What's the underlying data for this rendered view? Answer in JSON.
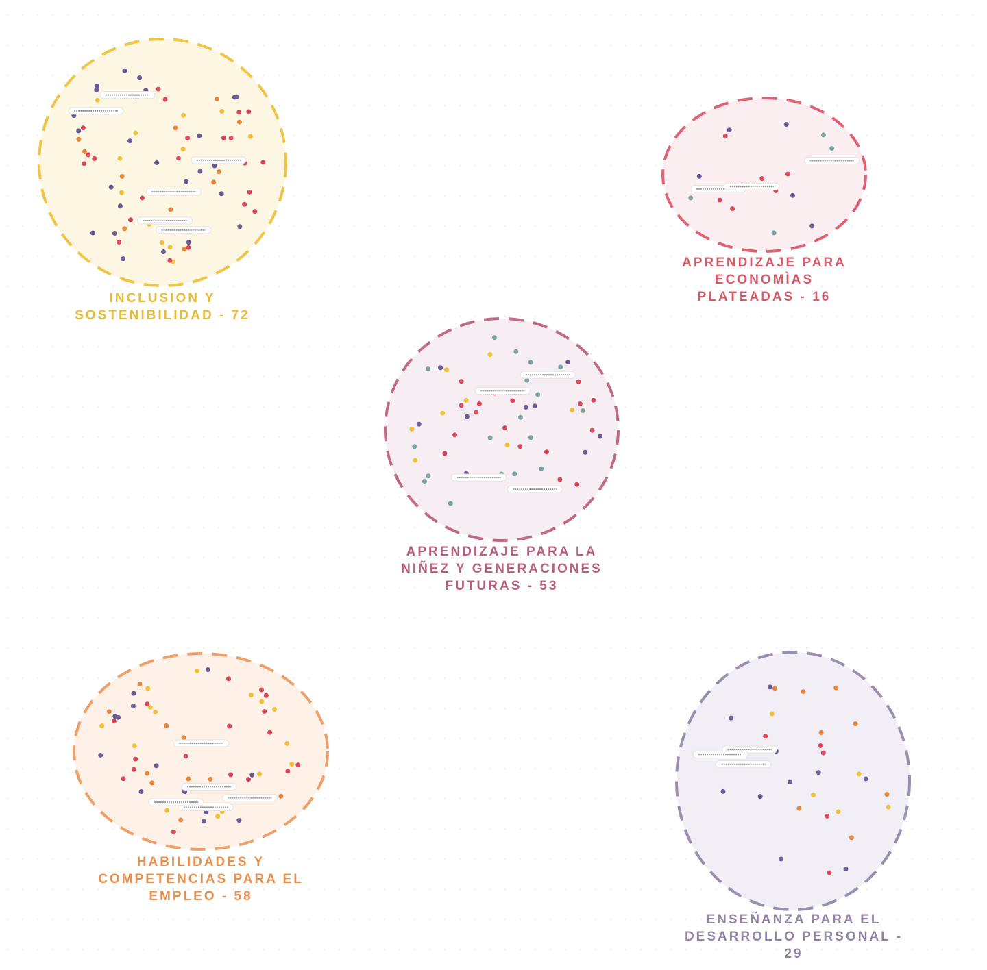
{
  "clusters": [
    {
      "label": "INCLUSION Y SOSTENIBILIDAD - 72"
    },
    {
      "label": "APRENDIZAJE PARA ECONOMÌAS PLATEADAS - 16"
    },
    {
      "label": "APRENDIZAJE PARA LA NIÑEZ Y GENERACIONES FUTURAS - 53"
    },
    {
      "label": "HABILIDADES Y COMPETENCIAS PARA EL EMPLEO - 58"
    },
    {
      "label": "ENSEÑANZA PARA EL DESARROLLO PERSONAL - 29"
    }
  ]
}
